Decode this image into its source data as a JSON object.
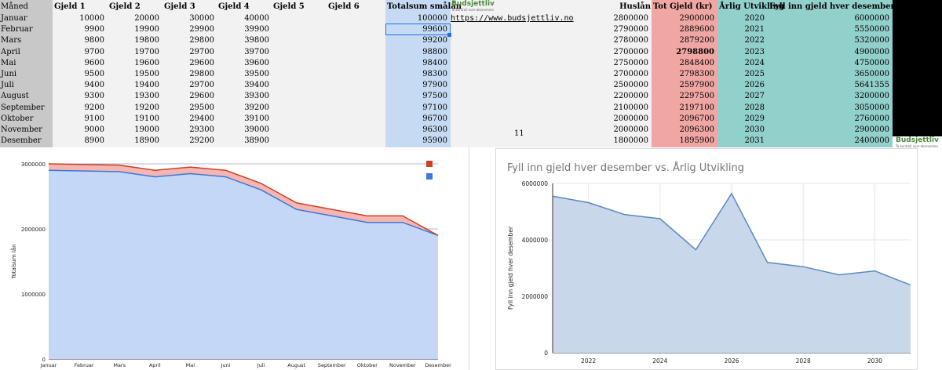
{
  "sheet": {
    "headers": [
      "Måned",
      "Gjeld 1",
      "Gjeld 2",
      "Gjeld 3",
      "Gjeld 4",
      "Gjeld 5",
      "Gjeld 6",
      "Totalsum smålån",
      "",
      "Huslån",
      "Tot Gjeld (kr)",
      "Årlig Utvikling",
      "Fyll inn gjeld hver desember"
    ],
    "logo_text": "Budsjettliv",
    "logo_sub": "Ta kontroll over økonomien",
    "link": "https://www.budsjettliv.no",
    "stray_value": "11",
    "rows": [
      {
        "month": "Januar",
        "g1": "10000",
        "g2": "20000",
        "g3": "30000",
        "g4": "40000",
        "total": "100000",
        "hus": "2800000",
        "tot": "2900000",
        "year": "2020",
        "fyll": "6000000"
      },
      {
        "month": "Februar",
        "g1": "9900",
        "g2": "19900",
        "g3": "29900",
        "g4": "39900",
        "total": "99600",
        "hus": "2790000",
        "tot": "2889600",
        "year": "2021",
        "fyll": "5550000"
      },
      {
        "month": "Mars",
        "g1": "9800",
        "g2": "19800",
        "g3": "29800",
        "g4": "39800",
        "total": "99200",
        "hus": "2780000",
        "tot": "2879200",
        "year": "2022",
        "fyll": "5320000"
      },
      {
        "month": "April",
        "g1": "9700",
        "g2": "19700",
        "g3": "29700",
        "g4": "39700",
        "total": "98800",
        "hus": "2700000",
        "tot": "2798800",
        "year": "2023",
        "fyll": "4900000"
      },
      {
        "month": "Mai",
        "g1": "9600",
        "g2": "19600",
        "g3": "29600",
        "g4": "39600",
        "total": "98400",
        "hus": "2750000",
        "tot": "2848400",
        "year": "2024",
        "fyll": "4750000"
      },
      {
        "month": "Juni",
        "g1": "9500",
        "g2": "19500",
        "g3": "29800",
        "g4": "39500",
        "total": "98300",
        "hus": "2700000",
        "tot": "2798300",
        "year": "2025",
        "fyll": "3650000"
      },
      {
        "month": "Juli",
        "g1": "9400",
        "g2": "19400",
        "g3": "29700",
        "g4": "39400",
        "total": "97900",
        "hus": "2500000",
        "tot": "2597900",
        "year": "2026",
        "fyll": "5641355"
      },
      {
        "month": "August",
        "g1": "9300",
        "g2": "19300",
        "g3": "29600",
        "g4": "39300",
        "total": "97500",
        "hus": "2200000",
        "tot": "2297500",
        "year": "2027",
        "fyll": "3200000"
      },
      {
        "month": "September",
        "g1": "9200",
        "g2": "19200",
        "g3": "29500",
        "g4": "39200",
        "total": "97100",
        "hus": "2100000",
        "tot": "2197100",
        "year": "2028",
        "fyll": "3050000"
      },
      {
        "month": "Oktober",
        "g1": "9100",
        "g2": "19100",
        "g3": "29400",
        "g4": "39100",
        "total": "96700",
        "hus": "2000000",
        "tot": "2096700",
        "year": "2029",
        "fyll": "2760000"
      },
      {
        "month": "November",
        "g1": "9000",
        "g2": "19000",
        "g3": "29300",
        "g4": "39000",
        "total": "96300",
        "hus": "2000000",
        "tot": "2096300",
        "year": "2030",
        "fyll": "2900000"
      },
      {
        "month": "Desember",
        "g1": "8900",
        "g2": "18900",
        "g3": "29200",
        "g4": "38900",
        "total": "95900",
        "hus": "1800000",
        "tot": "1895900",
        "year": "2031",
        "fyll": "2400000"
      }
    ]
  },
  "chart_data": [
    {
      "type": "area",
      "title": "",
      "xlabel": "",
      "ylabel": "Totalsum lån",
      "categories": [
        "Januar",
        "Februar",
        "Mars",
        "April",
        "Mai",
        "Juni",
        "Juli",
        "August",
        "September",
        "Oktober",
        "November",
        "Desember"
      ],
      "series": [
        {
          "color": "#3c78d8",
          "fill": "#c5d7f7",
          "values": [
            2900000,
            2890000,
            2880000,
            2800000,
            2850000,
            2800000,
            2600000,
            2300000,
            2200000,
            2100000,
            2100000,
            1900000
          ]
        },
        {
          "color": "#cc4125",
          "fill": "#f4b6b2",
          "values": [
            3000000,
            2990000,
            2980000,
            2900000,
            2950000,
            2900000,
            2700000,
            2400000,
            2300000,
            2200000,
            2200000,
            1900000
          ]
        }
      ],
      "yticks": [
        "0",
        "1000000",
        "2000000",
        "3000000"
      ],
      "ylim": [
        0,
        3000000
      ],
      "legend": "top-right",
      "grid": true
    },
    {
      "type": "area",
      "title": "Fyll inn gjeld hver desember vs. Årlig Utvikling",
      "xlabel": "",
      "ylabel": "Fyll inn gjeld hver desember",
      "x": [
        2021,
        2022,
        2023,
        2024,
        2025,
        2026,
        2027,
        2028,
        2029,
        2030,
        2031
      ],
      "values": [
        5550000,
        5320000,
        4900000,
        4750000,
        3650000,
        5641355,
        3200000,
        3050000,
        2760000,
        2900000,
        2400000
      ],
      "xticks": [
        "2022",
        "2024",
        "2026",
        "2028",
        "2030"
      ],
      "yticks": [
        "0",
        "2000000",
        "4000000",
        "6000000"
      ],
      "ylim": [
        0,
        6000000
      ],
      "xlim": [
        2021,
        2031
      ],
      "color": "#5b87c5",
      "fill": "#c9d7ea",
      "grid": true
    }
  ]
}
